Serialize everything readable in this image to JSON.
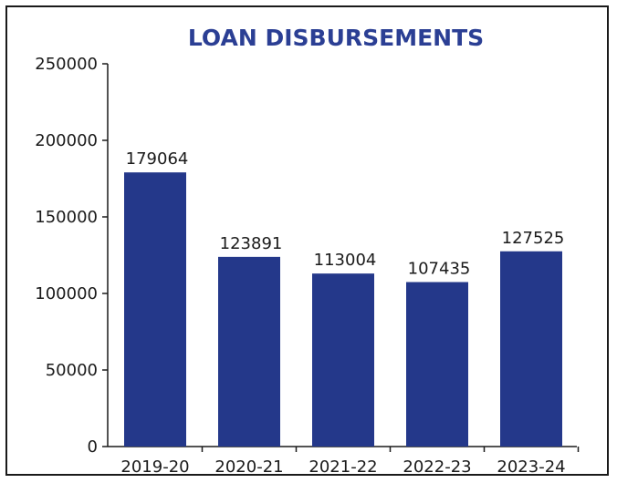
{
  "chart_data": {
    "type": "bar",
    "title": "LOAN DISBURSEMENTS",
    "xlabel": "",
    "ylabel": "",
    "categories": [
      "2019-20",
      "2020-21",
      "2021-22",
      "2022-23",
      "2023-24"
    ],
    "values": [
      179064,
      123891,
      113004,
      107435,
      127525
    ],
    "data_labels": [
      "179064",
      "123891",
      "113004",
      "107435",
      "127525"
    ],
    "ylim": [
      0,
      250000
    ],
    "yticks": [
      0,
      50000,
      100000,
      150000,
      200000,
      250000
    ],
    "ytick_labels": [
      "0",
      "50000",
      "100000",
      "150000",
      "200000",
      "250000"
    ],
    "grid": false,
    "legend": "none",
    "colors": {
      "bar": "#24388a",
      "title": "#2b3f94",
      "text": "#1a1a1a"
    }
  }
}
